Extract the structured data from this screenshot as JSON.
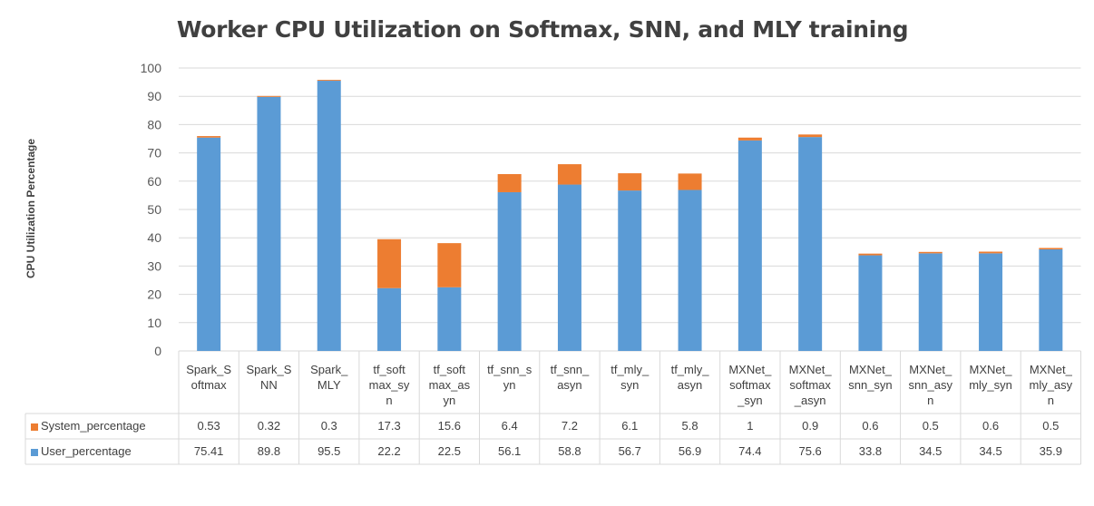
{
  "chart_data": {
    "type": "bar",
    "stacked": true,
    "title": "Worker CPU Utilization on Softmax, SNN, and MLY training",
    "xlabel": "",
    "ylabel": "CPU Utilization Percentage",
    "ylim": [
      0,
      100
    ],
    "yticks": [
      0,
      10,
      20,
      30,
      40,
      50,
      60,
      70,
      80,
      90,
      100
    ],
    "grid": true,
    "legend": "data-table",
    "categories": [
      "Spark_Softmax",
      "Spark_SNN",
      "Spark_MLY",
      "tf_softmax_syn",
      "tf_softmax_asyn",
      "tf_snn_syn",
      "tf_snn_asyn",
      "tf_mly_syn",
      "tf_mly_asyn",
      "MXNet_softmax_syn",
      "MXNet_softmax_asyn",
      "MXNet_snn_syn",
      "MXNet_snn_asyn",
      "MXNet_mly_syn",
      "MXNet_mly_asyn"
    ],
    "category_labels_wrapped": [
      "Spark_S oftmax",
      "Spark_S NN",
      "Spark_ MLY",
      "tf_soft max_sy n",
      "tf_soft max_as yn",
      "tf_snn_s yn",
      "tf_snn_ asyn",
      "tf_mly_ syn",
      "tf_mly_ asyn",
      "MXNet_ softmax _syn",
      "MXNet_ softmax _asyn",
      "MXNet_ snn_syn",
      "MXNet_ snn_asy n",
      "MXNet_ mly_syn",
      "MXNet_ mly_asy n"
    ],
    "series": [
      {
        "name": "User_percentage",
        "color": "#5b9bd5",
        "values": [
          75.41,
          89.8,
          95.5,
          22.2,
          22.5,
          56.1,
          58.8,
          56.7,
          56.9,
          74.4,
          75.6,
          33.8,
          34.5,
          34.5,
          35.9
        ],
        "labels": [
          "75.41",
          "89.8",
          "95.5",
          "22.2",
          "22.5",
          "56.1",
          "58.8",
          "56.7",
          "56.9",
          "74.4",
          "75.6",
          "33.8",
          "34.5",
          "34.5",
          "35.9"
        ]
      },
      {
        "name": "System_percentage",
        "color": "#ed7d31",
        "values": [
          0.53,
          0.32,
          0.3,
          17.3,
          15.6,
          6.4,
          7.2,
          6.1,
          5.8,
          1,
          0.9,
          0.6,
          0.5,
          0.6,
          0.5
        ],
        "labels": [
          "0.53",
          "0.32",
          "0.3",
          "17.3",
          "15.6",
          "6.4",
          "7.2",
          "6.1",
          "5.8",
          "1",
          "0.9",
          "0.6",
          "0.5",
          "0.6",
          "0.5"
        ]
      }
    ],
    "table_rows": [
      "System_percentage",
      "User_percentage"
    ]
  }
}
